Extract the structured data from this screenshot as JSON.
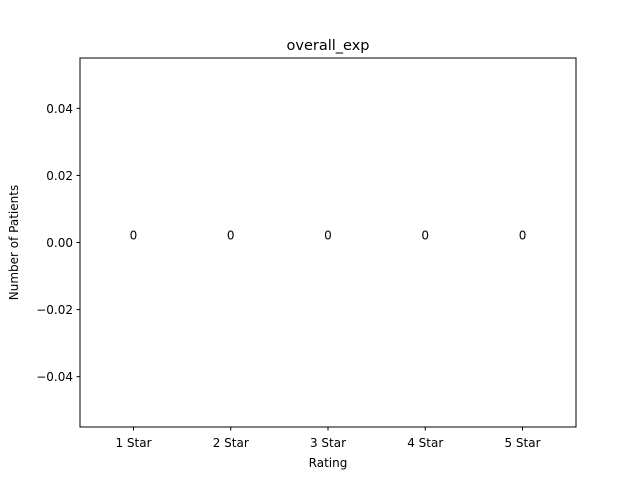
{
  "chart_data": {
    "type": "bar",
    "title": "overall_exp",
    "xlabel": "Rating",
    "ylabel": "Number of Patients",
    "categories": [
      "1 Star",
      "2 Star",
      "3 Star",
      "4 Star",
      "5 Star"
    ],
    "values": [
      0,
      0,
      0,
      0,
      0
    ],
    "data_labels": [
      "0",
      "0",
      "0",
      "0",
      "0"
    ],
    "ylim": [
      -0.055,
      0.055
    ],
    "yticks": [
      -0.04,
      -0.02,
      0.0,
      0.02,
      0.04
    ],
    "ytick_labels": [
      "−0.04",
      "−0.02",
      "0.00",
      "0.02",
      "0.04"
    ],
    "grid": false,
    "legend": "none"
  }
}
